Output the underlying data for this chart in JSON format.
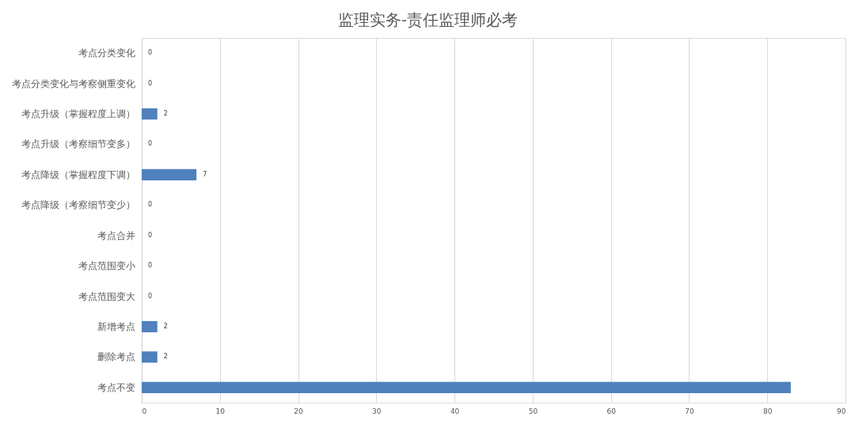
{
  "chart_data": {
    "type": "bar",
    "orientation": "horizontal",
    "title": "监理实务-责任监理师必考",
    "categories": [
      "考点分类变化",
      "考点分类变化与考察侧重变化",
      "考点升级（掌握程度上调）",
      "考点升级（考察细节变多）",
      "考点降级（掌握程度下调）",
      "考点降级（考察细节变少）",
      "考点合并",
      "考点范围变小",
      "考点范围变大",
      "新增考点",
      "删除考点",
      "考点不变"
    ],
    "values": [
      0,
      0,
      2,
      0,
      7,
      0,
      0,
      0,
      0,
      2,
      2,
      83
    ],
    "value_labels": [
      "0",
      "0",
      "2",
      "0",
      "7",
      "0",
      "0",
      "0",
      "0",
      "2",
      "2",
      null
    ],
    "color": "#4f81bd",
    "xlim": [
      0,
      90
    ],
    "xticks": [
      0,
      10,
      20,
      30,
      40,
      50,
      60,
      70,
      80,
      90
    ],
    "grid": "x"
  }
}
